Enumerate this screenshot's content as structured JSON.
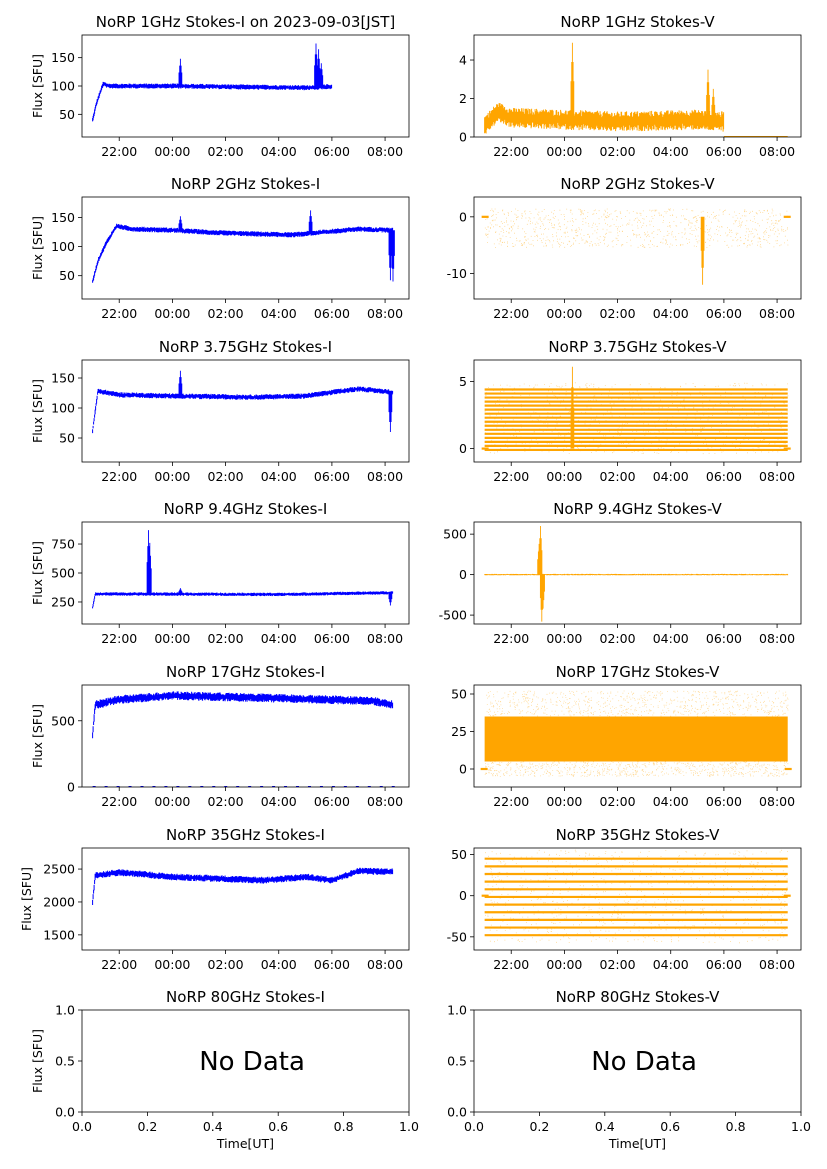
{
  "figure": {
    "xlabel": "Time[UT]",
    "ylabel": "Flux [SFU]",
    "time_ticks": [
      "22:00",
      "00:00",
      "02:00",
      "04:00",
      "06:00",
      "08:00"
    ],
    "no_data_text": "No Data",
    "colors": {
      "stokes_i": "#0000ff",
      "stokes_v": "#ffa500",
      "axes": "#000000",
      "background": "#ffffff"
    }
  },
  "chart_data": [
    {
      "type": "scatter",
      "title": "NoRP 1GHz Stokes-I on 2023-09-03[JST]",
      "ylabel": "Flux [SFU]",
      "xlim": [
        20.6,
        32.9
      ],
      "ylim": [
        10,
        190
      ],
      "yticks": [
        50,
        100,
        150
      ],
      "x_range": [
        21.0,
        30.0
      ],
      "baseline": [
        [
          21.0,
          40
        ],
        [
          21.15,
          70
        ],
        [
          21.4,
          104
        ],
        [
          21.6,
          100
        ],
        [
          24.0,
          100
        ],
        [
          27.0,
          98
        ],
        [
          29.0,
          97
        ],
        [
          30.0,
          99
        ]
      ],
      "spread": 3,
      "spikes": [
        [
          24.3,
          148
        ],
        [
          29.4,
          175
        ],
        [
          29.5,
          165
        ],
        [
          29.6,
          140
        ]
      ]
    },
    {
      "type": "scatter",
      "title": "NoRP 1GHz Stokes-V",
      "ylabel": "",
      "xlim": [
        20.6,
        32.9
      ],
      "ylim": [
        0,
        5.3
      ],
      "yticks": [
        0,
        2,
        4
      ],
      "x_range": [
        21.0,
        30.0
      ],
      "baseline": [
        [
          21.0,
          0.6
        ],
        [
          21.5,
          1.3
        ],
        [
          22.0,
          1.0
        ],
        [
          26.0,
          0.8
        ],
        [
          29.0,
          0.9
        ],
        [
          30.0,
          0.8
        ]
      ],
      "spread": 0.35,
      "spikes": [
        [
          24.3,
          4.9
        ],
        [
          29.4,
          3.5
        ],
        [
          29.6,
          2.5
        ]
      ],
      "tail": {
        "x": [
          30.0,
          32.4
        ],
        "y": 0.02
      }
    },
    {
      "type": "scatter",
      "title": "NoRP 2GHz Stokes-I",
      "ylabel": "Flux [SFU]",
      "xlim": [
        20.6,
        32.9
      ],
      "ylim": [
        10,
        185
      ],
      "yticks": [
        50,
        100,
        150
      ],
      "x_range": [
        21.0,
        32.3
      ],
      "baseline": [
        [
          21.0,
          40
        ],
        [
          21.2,
          75
        ],
        [
          21.5,
          105
        ],
        [
          21.9,
          135
        ],
        [
          22.5,
          130
        ],
        [
          24.0,
          128
        ],
        [
          26.0,
          123
        ],
        [
          28.5,
          120
        ],
        [
          29.5,
          124
        ],
        [
          31.0,
          130
        ],
        [
          32.3,
          128
        ]
      ],
      "spread": 3,
      "spikes": [
        [
          24.3,
          152
        ],
        [
          29.2,
          162
        ],
        [
          32.2,
          42
        ],
        [
          32.3,
          40
        ]
      ]
    },
    {
      "type": "scatter",
      "title": "NoRP 2GHz Stokes-V",
      "ylabel": "",
      "xlim": [
        20.6,
        32.9
      ],
      "ylim": [
        -14.5,
        3.5
      ],
      "yticks": [
        -10,
        0
      ],
      "x_range": [
        21.0,
        32.4
      ],
      "bands": [
        2,
        -6
      ],
      "band_step": 0.6,
      "spikes": [
        [
          29.2,
          -12
        ]
      ]
    },
    {
      "type": "scatter",
      "title": "NoRP 3.75GHz Stokes-I",
      "ylabel": "Flux [SFU]",
      "xlim": [
        20.6,
        32.9
      ],
      "ylim": [
        10,
        180
      ],
      "yticks": [
        50,
        100,
        150
      ],
      "x_range": [
        21.0,
        32.3
      ],
      "baseline": [
        [
          21.0,
          62
        ],
        [
          21.1,
          95
        ],
        [
          21.2,
          128
        ],
        [
          22.0,
          122
        ],
        [
          24.0,
          120
        ],
        [
          27.0,
          118
        ],
        [
          29.0,
          120
        ],
        [
          31.0,
          132
        ],
        [
          32.3,
          126
        ]
      ],
      "spread": 3,
      "spikes": [
        [
          24.3,
          162
        ],
        [
          32.2,
          60
        ]
      ]
    },
    {
      "type": "scatter",
      "title": "NoRP 3.75GHz Stokes-V",
      "ylabel": "",
      "xlim": [
        20.6,
        32.9
      ],
      "ylim": [
        -1.0,
        6.6
      ],
      "yticks": [
        0,
        5
      ],
      "x_range": [
        21.0,
        32.4
      ],
      "bands": [
        -0.1,
        4.6
      ],
      "band_step": 0.3,
      "spikes": [
        [
          24.3,
          6.1
        ]
      ]
    },
    {
      "type": "scatter",
      "title": "NoRP 9.4GHz Stokes-I",
      "ylabel": "Flux [SFU]",
      "xlim": [
        20.6,
        32.9
      ],
      "ylim": [
        60,
        940
      ],
      "yticks": [
        250,
        500,
        750
      ],
      "x_range": [
        21.0,
        32.3
      ],
      "baseline": [
        [
          21.0,
          200
        ],
        [
          21.1,
          320
        ],
        [
          24.0,
          318
        ],
        [
          28.0,
          315
        ],
        [
          32.3,
          330
        ]
      ],
      "spread": 10,
      "spikes": [
        [
          23.1,
          870
        ],
        [
          23.15,
          760
        ],
        [
          24.3,
          370
        ],
        [
          32.2,
          220
        ]
      ]
    },
    {
      "type": "scatter",
      "title": "NoRP 9.4GHz Stokes-V",
      "ylabel": "",
      "xlim": [
        20.6,
        32.9
      ],
      "ylim": [
        -610,
        650
      ],
      "yticks": [
        -500,
        0,
        500
      ],
      "x_range": [
        21.0,
        32.4
      ],
      "baseline": [
        [
          21.0,
          0
        ],
        [
          32.4,
          0
        ]
      ],
      "spread": 6,
      "spikes": [
        [
          23.1,
          600
        ],
        [
          23.15,
          -580
        ],
        [
          23.05,
          380
        ],
        [
          23.2,
          -420
        ]
      ]
    },
    {
      "type": "scatter",
      "title": "NoRP 17GHz Stokes-I",
      "ylabel": "Flux [SFU]",
      "xlim": [
        20.6,
        32.9
      ],
      "ylim": [
        0,
        770
      ],
      "yticks": [
        0,
        500
      ],
      "x_range": [
        21.0,
        32.3
      ],
      "baseline": [
        [
          21.0,
          400
        ],
        [
          21.1,
          620
        ],
        [
          22.0,
          660
        ],
        [
          24.0,
          690
        ],
        [
          28.0,
          670
        ],
        [
          31.5,
          650
        ],
        [
          32.3,
          620
        ]
      ],
      "spread": 22,
      "spikes": [],
      "zero_dashes": true
    },
    {
      "type": "scatter",
      "title": "NoRP 17GHz Stokes-V",
      "ylabel": "",
      "xlim": [
        20.6,
        32.9
      ],
      "ylim": [
        -12,
        56
      ],
      "yticks": [
        0,
        25,
        50
      ],
      "x_range": [
        21.0,
        32.4
      ],
      "dense_band": [
        5,
        35
      ],
      "dense_outliers": [
        -5,
        52
      ]
    },
    {
      "type": "scatter",
      "title": "NoRP 35GHz Stokes-I",
      "ylabel": "Flux [SFU]",
      "xlim": [
        20.6,
        32.9
      ],
      "ylim": [
        1270,
        2820
      ],
      "yticks": [
        1500,
        2000,
        2500
      ],
      "x_range": [
        21.0,
        32.3
      ],
      "baseline": [
        [
          21.0,
          2000
        ],
        [
          21.1,
          2400
        ],
        [
          22.0,
          2450
        ],
        [
          24.0,
          2380
        ],
        [
          27.5,
          2330
        ],
        [
          29.0,
          2380
        ],
        [
          30.0,
          2330
        ],
        [
          31.0,
          2470
        ],
        [
          32.3,
          2460
        ]
      ],
      "spread": 35,
      "spikes": []
    },
    {
      "type": "scatter",
      "title": "NoRP 35GHz Stokes-V",
      "ylabel": "",
      "xlim": [
        20.6,
        32.9
      ],
      "ylim": [
        -66,
        58
      ],
      "yticks": [
        -50,
        0,
        50
      ],
      "x_range": [
        21.0,
        32.4
      ],
      "bands": [
        -48,
        46
      ],
      "band_step": 9.3
    },
    {
      "type": "empty",
      "title": "NoRP 80GHz Stokes-I",
      "ylabel": "Flux [SFU]",
      "xlim": [
        0,
        1
      ],
      "ylim": [
        0,
        1
      ],
      "xticks": [
        "0.0",
        "0.2",
        "0.4",
        "0.6",
        "0.8",
        "1.0"
      ],
      "yticks": [
        "0.0",
        "0.5",
        "1.0"
      ],
      "xlabel": "Time[UT]",
      "no_data": true
    },
    {
      "type": "empty",
      "title": "NoRP 80GHz Stokes-V",
      "ylabel": "",
      "xlim": [
        0,
        1
      ],
      "ylim": [
        0,
        1
      ],
      "xticks": [
        "0.0",
        "0.2",
        "0.4",
        "0.6",
        "0.8",
        "1.0"
      ],
      "yticks": [
        "0.0",
        "0.5",
        "1.0"
      ],
      "xlabel": "Time[UT]",
      "no_data": true
    }
  ]
}
